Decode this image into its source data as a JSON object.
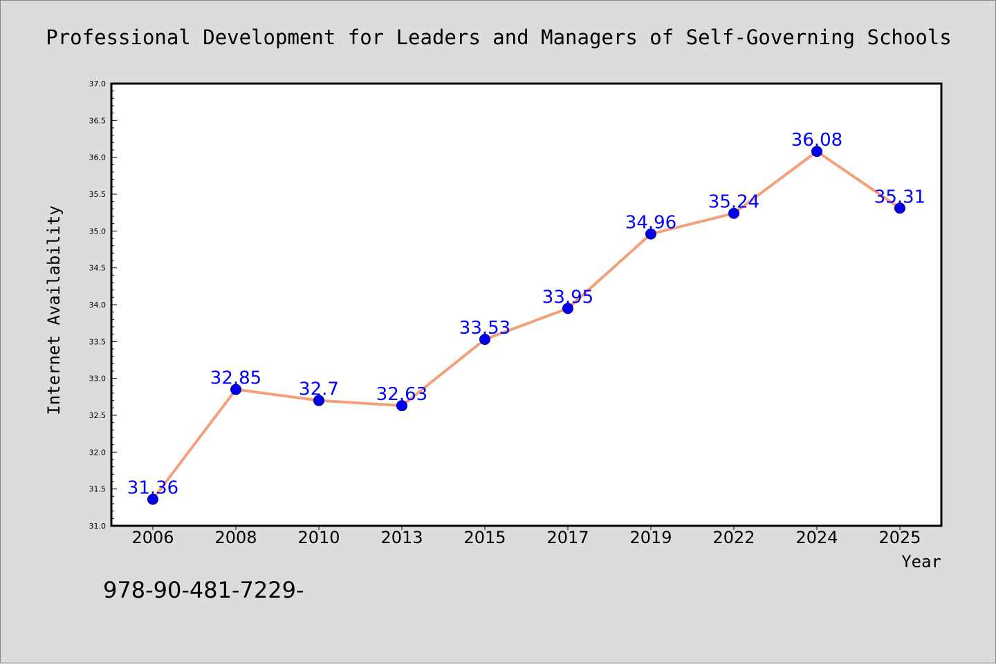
{
  "chart_data": {
    "type": "line",
    "title": "Professional Development for Leaders and Managers of Self-Governing Schools",
    "xlabel": "Year",
    "ylabel": "Internet Availability",
    "categories": [
      "2006",
      "2008",
      "2010",
      "2013",
      "2015",
      "2017",
      "2019",
      "2022",
      "2024",
      "2025"
    ],
    "series": [
      {
        "values": [
          31.36,
          32.85,
          32.7,
          32.63,
          33.53,
          33.95,
          34.96,
          35.24,
          36.08,
          35.31
        ],
        "labels": [
          "31.36",
          "32.85",
          "32.7",
          "32.63",
          "33.53",
          "33.95",
          "34.96",
          "35.24",
          "36.08",
          "35.31"
        ]
      }
    ],
    "ylim": [
      31.0,
      37.0
    ],
    "yticks": [
      "31.0",
      "31.5",
      "32.0",
      "32.5",
      "33.0",
      "33.5",
      "34.0",
      "34.5",
      "35.0",
      "35.5",
      "36.0",
      "36.5",
      "37.0"
    ],
    "grid": false,
    "legend": "none"
  },
  "footnote": "978-90-481-7229-",
  "colors": {
    "background": "#dcdcdc",
    "plot_background": "#ffffff",
    "line": "#f4a07a",
    "marker": "#0000ee",
    "data_label": "#0000ff",
    "axis": "#000000"
  }
}
